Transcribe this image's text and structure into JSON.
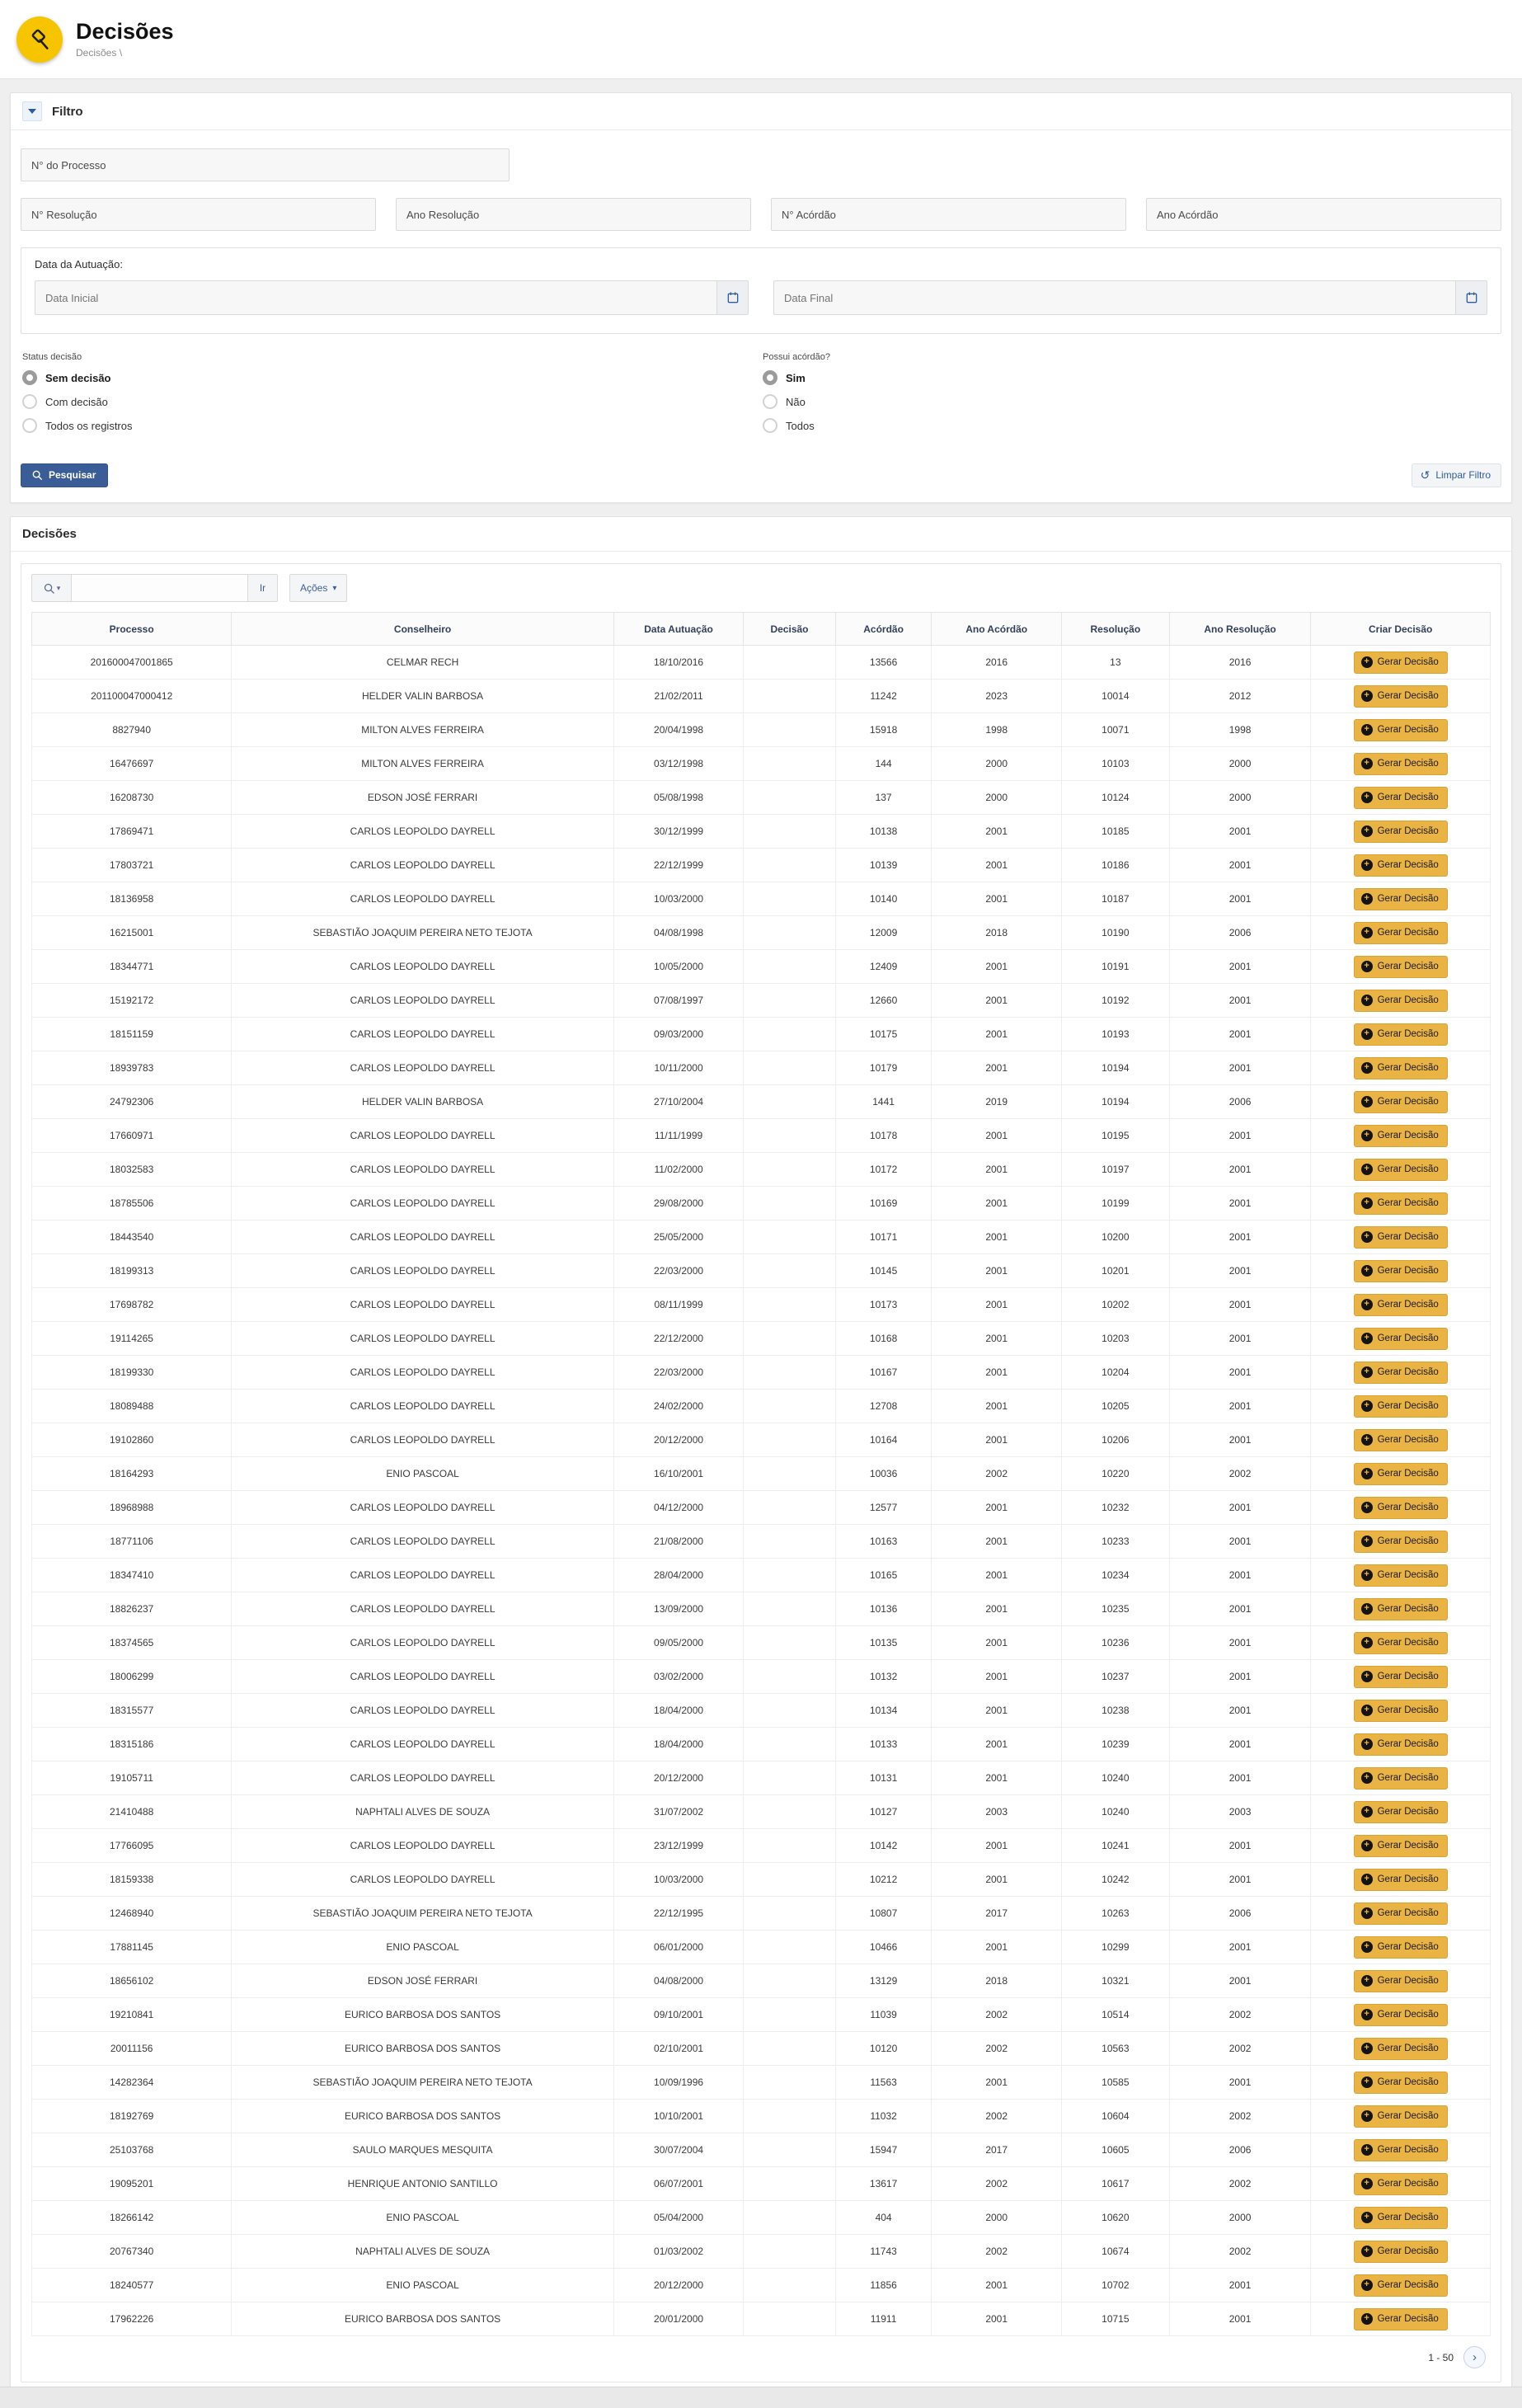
{
  "header": {
    "title": "Decisões",
    "breadcrumb": "Decisões  \\"
  },
  "filter": {
    "title": "Filtro",
    "fields": {
      "processo_placeholder": "N° do Processo",
      "num_resolucao_placeholder": "N° Resolução",
      "ano_resolucao_placeholder": "Ano Resolução",
      "num_acordao_placeholder": "N° Acórdão",
      "ano_acordao_placeholder": "Ano Acórdão"
    },
    "date_group": {
      "label": "Data da Autuação:",
      "start_placeholder": "Data Inicial",
      "end_placeholder": "Data Final"
    },
    "radio_groups": [
      {
        "id": "status",
        "label": "Status decisão",
        "options": [
          "Sem decisão",
          "Com decisão",
          "Todos os registros"
        ],
        "selected": 0
      },
      {
        "id": "acordao",
        "label": "Possui acórdão?",
        "options": [
          "Sim",
          "Não",
          "Todos"
        ],
        "selected": 0
      }
    ],
    "search_button": "Pesquisar",
    "clear_button": "Limpar Filtro"
  },
  "report": {
    "region_title": "Decisões",
    "toolbar": {
      "search_placeholder": "",
      "go_button": "Ir",
      "actions_button": "Ações"
    },
    "columns": [
      "Processo",
      "Conselheiro",
      "Data Autuação",
      "Decisão",
      "Acórdão",
      "Ano Acórdão",
      "Resolução",
      "Ano Resolução",
      "Criar Decisão"
    ],
    "row_button": "Gerar Decisão",
    "pagination": "1 - 50",
    "rows": [
      [
        "201600047001865",
        "CELMAR RECH",
        "18/10/2016",
        "",
        "13566",
        "2016",
        "13",
        "2016"
      ],
      [
        "201100047000412",
        "HELDER VALIN BARBOSA",
        "21/02/2011",
        "",
        "11242",
        "2023",
        "10014",
        "2012"
      ],
      [
        "8827940",
        "MILTON ALVES FERREIRA",
        "20/04/1998",
        "",
        "15918",
        "1998",
        "10071",
        "1998"
      ],
      [
        "16476697",
        "MILTON ALVES FERREIRA",
        "03/12/1998",
        "",
        "144",
        "2000",
        "10103",
        "2000"
      ],
      [
        "16208730",
        "EDSON JOSÉ FERRARI",
        "05/08/1998",
        "",
        "137",
        "2000",
        "10124",
        "2000"
      ],
      [
        "17869471",
        "CARLOS LEOPOLDO DAYRELL",
        "30/12/1999",
        "",
        "10138",
        "2001",
        "10185",
        "2001"
      ],
      [
        "17803721",
        "CARLOS LEOPOLDO DAYRELL",
        "22/12/1999",
        "",
        "10139",
        "2001",
        "10186",
        "2001"
      ],
      [
        "18136958",
        "CARLOS LEOPOLDO DAYRELL",
        "10/03/2000",
        "",
        "10140",
        "2001",
        "10187",
        "2001"
      ],
      [
        "16215001",
        "SEBASTIÃO JOAQUIM PEREIRA NETO TEJOTA",
        "04/08/1998",
        "",
        "12009",
        "2018",
        "10190",
        "2006"
      ],
      [
        "18344771",
        "CARLOS LEOPOLDO DAYRELL",
        "10/05/2000",
        "",
        "12409",
        "2001",
        "10191",
        "2001"
      ],
      [
        "15192172",
        "CARLOS LEOPOLDO DAYRELL",
        "07/08/1997",
        "",
        "12660",
        "2001",
        "10192",
        "2001"
      ],
      [
        "18151159",
        "CARLOS LEOPOLDO DAYRELL",
        "09/03/2000",
        "",
        "10175",
        "2001",
        "10193",
        "2001"
      ],
      [
        "18939783",
        "CARLOS LEOPOLDO DAYRELL",
        "10/11/2000",
        "",
        "10179",
        "2001",
        "10194",
        "2001"
      ],
      [
        "24792306",
        "HELDER VALIN BARBOSA",
        "27/10/2004",
        "",
        "1441",
        "2019",
        "10194",
        "2006"
      ],
      [
        "17660971",
        "CARLOS LEOPOLDO DAYRELL",
        "11/11/1999",
        "",
        "10178",
        "2001",
        "10195",
        "2001"
      ],
      [
        "18032583",
        "CARLOS LEOPOLDO DAYRELL",
        "11/02/2000",
        "",
        "10172",
        "2001",
        "10197",
        "2001"
      ],
      [
        "18785506",
        "CARLOS LEOPOLDO DAYRELL",
        "29/08/2000",
        "",
        "10169",
        "2001",
        "10199",
        "2001"
      ],
      [
        "18443540",
        "CARLOS LEOPOLDO DAYRELL",
        "25/05/2000",
        "",
        "10171",
        "2001",
        "10200",
        "2001"
      ],
      [
        "18199313",
        "CARLOS LEOPOLDO DAYRELL",
        "22/03/2000",
        "",
        "10145",
        "2001",
        "10201",
        "2001"
      ],
      [
        "17698782",
        "CARLOS LEOPOLDO DAYRELL",
        "08/11/1999",
        "",
        "10173",
        "2001",
        "10202",
        "2001"
      ],
      [
        "19114265",
        "CARLOS LEOPOLDO DAYRELL",
        "22/12/2000",
        "",
        "10168",
        "2001",
        "10203",
        "2001"
      ],
      [
        "18199330",
        "CARLOS LEOPOLDO DAYRELL",
        "22/03/2000",
        "",
        "10167",
        "2001",
        "10204",
        "2001"
      ],
      [
        "18089488",
        "CARLOS LEOPOLDO DAYRELL",
        "24/02/2000",
        "",
        "12708",
        "2001",
        "10205",
        "2001"
      ],
      [
        "19102860",
        "CARLOS LEOPOLDO DAYRELL",
        "20/12/2000",
        "",
        "10164",
        "2001",
        "10206",
        "2001"
      ],
      [
        "18164293",
        "ENIO PASCOAL",
        "16/10/2001",
        "",
        "10036",
        "2002",
        "10220",
        "2002"
      ],
      [
        "18968988",
        "CARLOS LEOPOLDO DAYRELL",
        "04/12/2000",
        "",
        "12577",
        "2001",
        "10232",
        "2001"
      ],
      [
        "18771106",
        "CARLOS LEOPOLDO DAYRELL",
        "21/08/2000",
        "",
        "10163",
        "2001",
        "10233",
        "2001"
      ],
      [
        "18347410",
        "CARLOS LEOPOLDO DAYRELL",
        "28/04/2000",
        "",
        "10165",
        "2001",
        "10234",
        "2001"
      ],
      [
        "18826237",
        "CARLOS LEOPOLDO DAYRELL",
        "13/09/2000",
        "",
        "10136",
        "2001",
        "10235",
        "2001"
      ],
      [
        "18374565",
        "CARLOS LEOPOLDO DAYRELL",
        "09/05/2000",
        "",
        "10135",
        "2001",
        "10236",
        "2001"
      ],
      [
        "18006299",
        "CARLOS LEOPOLDO DAYRELL",
        "03/02/2000",
        "",
        "10132",
        "2001",
        "10237",
        "2001"
      ],
      [
        "18315577",
        "CARLOS LEOPOLDO DAYRELL",
        "18/04/2000",
        "",
        "10134",
        "2001",
        "10238",
        "2001"
      ],
      [
        "18315186",
        "CARLOS LEOPOLDO DAYRELL",
        "18/04/2000",
        "",
        "10133",
        "2001",
        "10239",
        "2001"
      ],
      [
        "19105711",
        "CARLOS LEOPOLDO DAYRELL",
        "20/12/2000",
        "",
        "10131",
        "2001",
        "10240",
        "2001"
      ],
      [
        "21410488",
        "NAPHTALI ALVES DE SOUZA",
        "31/07/2002",
        "",
        "10127",
        "2003",
        "10240",
        "2003"
      ],
      [
        "17766095",
        "CARLOS LEOPOLDO DAYRELL",
        "23/12/1999",
        "",
        "10142",
        "2001",
        "10241",
        "2001"
      ],
      [
        "18159338",
        "CARLOS LEOPOLDO DAYRELL",
        "10/03/2000",
        "",
        "10212",
        "2001",
        "10242",
        "2001"
      ],
      [
        "12468940",
        "SEBASTIÃO JOAQUIM PEREIRA NETO TEJOTA",
        "22/12/1995",
        "",
        "10807",
        "2017",
        "10263",
        "2006"
      ],
      [
        "17881145",
        "ENIO PASCOAL",
        "06/01/2000",
        "",
        "10466",
        "2001",
        "10299",
        "2001"
      ],
      [
        "18656102",
        "EDSON JOSÉ FERRARI",
        "04/08/2000",
        "",
        "13129",
        "2018",
        "10321",
        "2001"
      ],
      [
        "19210841",
        "EURICO BARBOSA DOS SANTOS",
        "09/10/2001",
        "",
        "11039",
        "2002",
        "10514",
        "2002"
      ],
      [
        "20011156",
        "EURICO BARBOSA DOS SANTOS",
        "02/10/2001",
        "",
        "10120",
        "2002",
        "10563",
        "2002"
      ],
      [
        "14282364",
        "SEBASTIÃO JOAQUIM PEREIRA NETO TEJOTA",
        "10/09/1996",
        "",
        "11563",
        "2001",
        "10585",
        "2001"
      ],
      [
        "18192769",
        "EURICO BARBOSA DOS SANTOS",
        "10/10/2001",
        "",
        "11032",
        "2002",
        "10604",
        "2002"
      ],
      [
        "25103768",
        "SAULO MARQUES MESQUITA",
        "30/07/2004",
        "",
        "15947",
        "2017",
        "10605",
        "2006"
      ],
      [
        "19095201",
        "HENRIQUE ANTONIO SANTILLO",
        "06/07/2001",
        "",
        "13617",
        "2002",
        "10617",
        "2002"
      ],
      [
        "18266142",
        "ENIO PASCOAL",
        "05/04/2000",
        "",
        "404",
        "2000",
        "10620",
        "2000"
      ],
      [
        "20767340",
        "NAPHTALI ALVES DE SOUZA",
        "01/03/2002",
        "",
        "11743",
        "2002",
        "10674",
        "2002"
      ],
      [
        "18240577",
        "ENIO PASCOAL",
        "20/12/2000",
        "",
        "11856",
        "2001",
        "10702",
        "2001"
      ],
      [
        "17962226",
        "EURICO BARBOSA DOS SANTOS",
        "20/01/2000",
        "",
        "11911",
        "2001",
        "10715",
        "2001"
      ]
    ]
  },
  "colors": {
    "accent_yellow": "#F6C500",
    "button_yellow": "#EAB444",
    "primary_blue": "#3A5C97",
    "link_blue": "#2F5C9F"
  }
}
